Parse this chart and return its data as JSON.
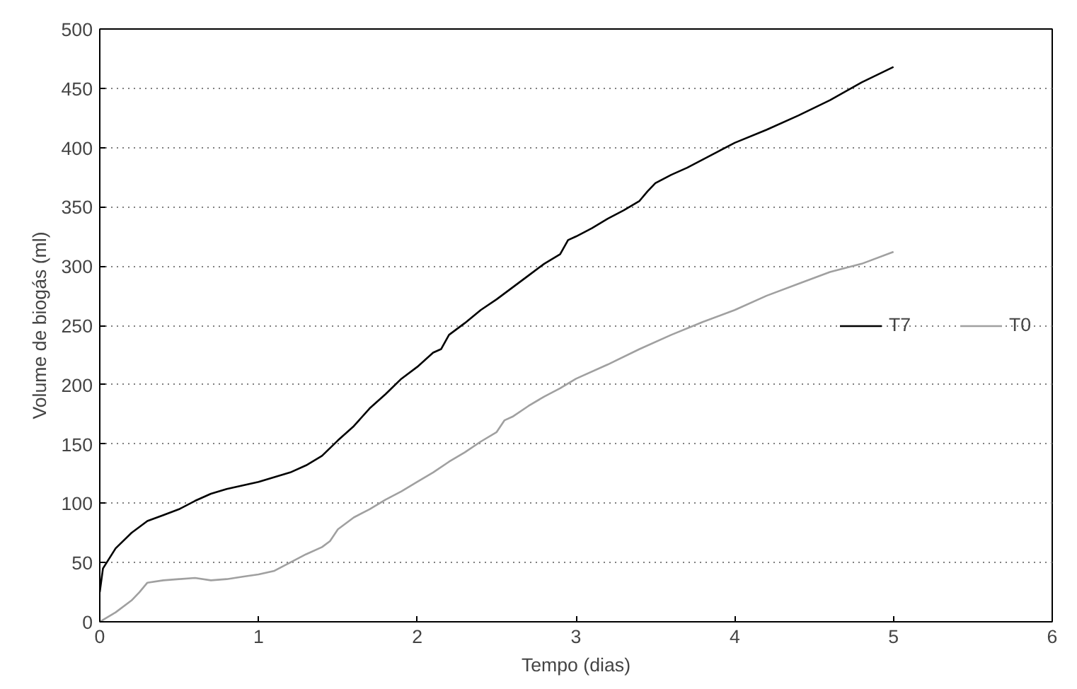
{
  "chart_data": {
    "type": "line",
    "xlabel": "Tempo (dias)",
    "ylabel": "Volume de biogás (ml)",
    "xlim": [
      0,
      6
    ],
    "xticks": [
      0,
      1,
      2,
      3,
      4,
      5,
      6
    ],
    "ylim": [
      0,
      500
    ],
    "yticks": [
      0,
      50,
      100,
      150,
      200,
      250,
      300,
      350,
      400,
      450,
      500
    ],
    "grid": "y",
    "legend": "right",
    "marker": "none",
    "line_style": "solid",
    "series": [
      {
        "name": "T7",
        "color": "#000000",
        "x": [
          0,
          0.02,
          0.1,
          0.2,
          0.3,
          0.4,
          0.5,
          0.6,
          0.7,
          0.8,
          0.9,
          1.0,
          1.1,
          1.2,
          1.3,
          1.4,
          1.5,
          1.6,
          1.7,
          1.8,
          1.9,
          2.0,
          2.1,
          2.15,
          2.2,
          2.3,
          2.4,
          2.5,
          2.6,
          2.7,
          2.8,
          2.9,
          2.95,
          3.0,
          3.1,
          3.2,
          3.3,
          3.4,
          3.45,
          3.5,
          3.6,
          3.7,
          3.8,
          3.9,
          4.0,
          4.2,
          4.4,
          4.6,
          4.8,
          5.0
        ],
        "values": [
          25,
          45,
          62,
          75,
          85,
          90,
          95,
          102,
          108,
          112,
          115,
          118,
          122,
          126,
          132,
          140,
          153,
          165,
          180,
          192,
          205,
          215,
          227,
          230,
          242,
          252,
          263,
          272,
          282,
          292,
          302,
          310,
          322,
          325,
          332,
          340,
          347,
          355,
          363,
          370,
          377,
          383,
          390,
          397,
          404,
          415,
          427,
          440,
          455,
          468
        ]
      },
      {
        "name": "T0",
        "color": "#a0a0a0",
        "x": [
          0,
          0.1,
          0.2,
          0.25,
          0.3,
          0.4,
          0.5,
          0.6,
          0.7,
          0.8,
          0.9,
          1.0,
          1.1,
          1.2,
          1.3,
          1.4,
          1.45,
          1.5,
          1.6,
          1.7,
          1.8,
          1.9,
          2.0,
          2.1,
          2.2,
          2.3,
          2.4,
          2.5,
          2.55,
          2.6,
          2.7,
          2.8,
          2.9,
          3.0,
          3.2,
          3.4,
          3.6,
          3.8,
          4.0,
          4.2,
          4.4,
          4.6,
          4.8,
          5.0
        ],
        "values": [
          0,
          8,
          18,
          25,
          33,
          35,
          36,
          37,
          35,
          36,
          38,
          40,
          43,
          50,
          57,
          63,
          68,
          78,
          88,
          95,
          103,
          110,
          118,
          126,
          135,
          143,
          152,
          160,
          170,
          173,
          182,
          190,
          197,
          205,
          217,
          230,
          242,
          253,
          263,
          275,
          285,
          295,
          302,
          312
        ]
      }
    ]
  }
}
